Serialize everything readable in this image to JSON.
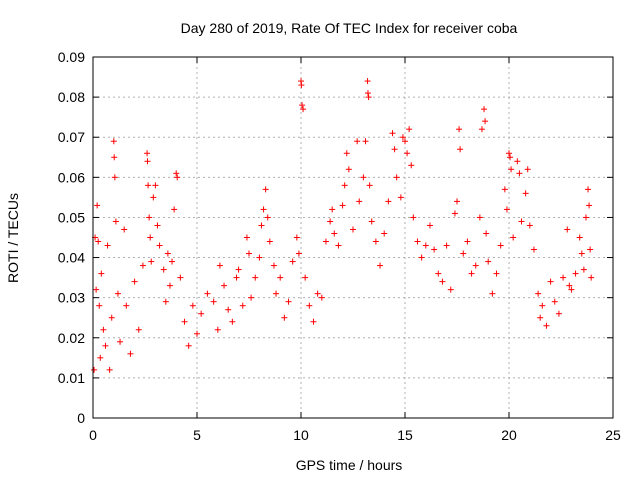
{
  "chart_data": {
    "type": "scatter",
    "title": "Day 280 of 2019, Rate Of TEC Index for receiver coba",
    "xlabel": "GPS time / hours",
    "ylabel": "ROTI / TECUs",
    "xlim": [
      0,
      25
    ],
    "ylim": [
      0,
      0.09
    ],
    "x_ticks": [
      0,
      5,
      10,
      15,
      20,
      25
    ],
    "x_tick_labels": [
      "0",
      "5",
      "10",
      "15",
      "20",
      "25"
    ],
    "y_ticks": [
      0,
      0.01,
      0.02,
      0.03,
      0.04,
      0.05,
      0.06,
      0.07,
      0.08,
      0.09
    ],
    "y_tick_labels": [
      "0",
      "0.01",
      "0.02",
      "0.03",
      "0.04",
      "0.05",
      "0.06",
      "0.07",
      "0.08",
      "0.09"
    ],
    "grid": true,
    "marker": "plus",
    "color": "#ff0000",
    "series": [
      {
        "name": "ROTI",
        "points": [
          [
            0.05,
            0.012
          ],
          [
            0.1,
            0.045
          ],
          [
            0.15,
            0.032
          ],
          [
            0.2,
            0.053
          ],
          [
            0.25,
            0.044
          ],
          [
            0.3,
            0.028
          ],
          [
            0.35,
            0.015
          ],
          [
            0.4,
            0.036
          ],
          [
            0.5,
            0.022
          ],
          [
            0.6,
            0.018
          ],
          [
            0.7,
            0.043
          ],
          [
            0.8,
            0.012
          ],
          [
            0.9,
            0.025
          ],
          [
            1.0,
            0.069
          ],
          [
            1.02,
            0.065
          ],
          [
            1.05,
            0.06
          ],
          [
            1.1,
            0.049
          ],
          [
            1.2,
            0.031
          ],
          [
            1.3,
            0.019
          ],
          [
            1.5,
            0.047
          ],
          [
            1.6,
            0.028
          ],
          [
            1.8,
            0.016
          ],
          [
            2.0,
            0.034
          ],
          [
            2.2,
            0.022
          ],
          [
            2.4,
            0.038
          ],
          [
            2.6,
            0.066
          ],
          [
            2.62,
            0.064
          ],
          [
            2.65,
            0.058
          ],
          [
            2.7,
            0.05
          ],
          [
            2.75,
            0.045
          ],
          [
            2.8,
            0.039
          ],
          [
            2.9,
            0.055
          ],
          [
            3.0,
            0.058
          ],
          [
            3.1,
            0.048
          ],
          [
            3.2,
            0.043
          ],
          [
            3.4,
            0.037
          ],
          [
            3.5,
            0.029
          ],
          [
            3.6,
            0.041
          ],
          [
            3.7,
            0.033
          ],
          [
            3.8,
            0.039
          ],
          [
            3.9,
            0.052
          ],
          [
            4.0,
            0.061
          ],
          [
            4.05,
            0.06
          ],
          [
            4.2,
            0.035
          ],
          [
            4.4,
            0.024
          ],
          [
            4.6,
            0.018
          ],
          [
            4.8,
            0.028
          ],
          [
            5.0,
            0.021
          ],
          [
            5.2,
            0.026
          ],
          [
            5.5,
            0.031
          ],
          [
            5.8,
            0.029
          ],
          [
            6.0,
            0.022
          ],
          [
            6.1,
            0.038
          ],
          [
            6.3,
            0.033
          ],
          [
            6.5,
            0.027
          ],
          [
            6.7,
            0.024
          ],
          [
            6.9,
            0.035
          ],
          [
            7.0,
            0.037
          ],
          [
            7.2,
            0.028
          ],
          [
            7.4,
            0.045
          ],
          [
            7.5,
            0.041
          ],
          [
            7.6,
            0.03
          ],
          [
            7.8,
            0.035
          ],
          [
            8.0,
            0.04
          ],
          [
            8.1,
            0.048
          ],
          [
            8.2,
            0.052
          ],
          [
            8.3,
            0.057
          ],
          [
            8.4,
            0.05
          ],
          [
            8.5,
            0.044
          ],
          [
            8.7,
            0.038
          ],
          [
            8.8,
            0.031
          ],
          [
            9.0,
            0.035
          ],
          [
            9.2,
            0.025
          ],
          [
            9.4,
            0.029
          ],
          [
            9.6,
            0.039
          ],
          [
            9.8,
            0.045
          ],
          [
            9.9,
            0.041
          ],
          [
            10.0,
            0.084
          ],
          [
            10.02,
            0.083
          ],
          [
            10.05,
            0.078
          ],
          [
            10.1,
            0.077
          ],
          [
            10.2,
            0.035
          ],
          [
            10.4,
            0.028
          ],
          [
            10.6,
            0.024
          ],
          [
            10.8,
            0.031
          ],
          [
            11.0,
            0.03
          ],
          [
            11.2,
            0.044
          ],
          [
            11.4,
            0.049
          ],
          [
            11.5,
            0.052
          ],
          [
            11.6,
            0.046
          ],
          [
            11.8,
            0.043
          ],
          [
            12.0,
            0.053
          ],
          [
            12.1,
            0.058
          ],
          [
            12.2,
            0.066
          ],
          [
            12.3,
            0.062
          ],
          [
            12.5,
            0.047
          ],
          [
            12.7,
            0.069
          ],
          [
            12.8,
            0.054
          ],
          [
            13.0,
            0.06
          ],
          [
            13.1,
            0.069
          ],
          [
            13.2,
            0.084
          ],
          [
            13.22,
            0.081
          ],
          [
            13.25,
            0.08
          ],
          [
            13.3,
            0.058
          ],
          [
            13.4,
            0.049
          ],
          [
            13.6,
            0.044
          ],
          [
            13.8,
            0.038
          ],
          [
            14.0,
            0.046
          ],
          [
            14.2,
            0.054
          ],
          [
            14.4,
            0.071
          ],
          [
            14.5,
            0.067
          ],
          [
            14.6,
            0.06
          ],
          [
            14.8,
            0.055
          ],
          [
            14.9,
            0.07
          ],
          [
            15.0,
            0.069
          ],
          [
            15.1,
            0.066
          ],
          [
            15.2,
            0.072
          ],
          [
            15.3,
            0.063
          ],
          [
            15.4,
            0.05
          ],
          [
            15.6,
            0.044
          ],
          [
            15.8,
            0.04
          ],
          [
            16.0,
            0.043
          ],
          [
            16.2,
            0.048
          ],
          [
            16.4,
            0.042
          ],
          [
            16.6,
            0.036
          ],
          [
            16.8,
            0.034
          ],
          [
            17.0,
            0.043
          ],
          [
            17.2,
            0.032
          ],
          [
            17.4,
            0.051
          ],
          [
            17.5,
            0.054
          ],
          [
            17.6,
            0.072
          ],
          [
            17.65,
            0.067
          ],
          [
            17.8,
            0.041
          ],
          [
            18.0,
            0.044
          ],
          [
            18.2,
            0.036
          ],
          [
            18.4,
            0.038
          ],
          [
            18.6,
            0.05
          ],
          [
            18.7,
            0.072
          ],
          [
            18.8,
            0.077
          ],
          [
            18.85,
            0.074
          ],
          [
            18.9,
            0.046
          ],
          [
            19.0,
            0.039
          ],
          [
            19.2,
            0.031
          ],
          [
            19.4,
            0.036
          ],
          [
            19.6,
            0.043
          ],
          [
            19.8,
            0.057
          ],
          [
            19.9,
            0.052
          ],
          [
            20.0,
            0.066
          ],
          [
            20.05,
            0.065
          ],
          [
            20.1,
            0.062
          ],
          [
            20.2,
            0.045
          ],
          [
            20.4,
            0.064
          ],
          [
            20.5,
            0.061
          ],
          [
            20.6,
            0.049
          ],
          [
            20.8,
            0.056
          ],
          [
            20.9,
            0.062
          ],
          [
            21.0,
            0.048
          ],
          [
            21.2,
            0.042
          ],
          [
            21.4,
            0.031
          ],
          [
            21.5,
            0.025
          ],
          [
            21.6,
            0.028
          ],
          [
            21.8,
            0.023
          ],
          [
            22.0,
            0.034
          ],
          [
            22.2,
            0.029
          ],
          [
            22.4,
            0.026
          ],
          [
            22.6,
            0.035
          ],
          [
            22.8,
            0.047
          ],
          [
            22.9,
            0.033
          ],
          [
            23.0,
            0.032
          ],
          [
            23.2,
            0.036
          ],
          [
            23.4,
            0.045
          ],
          [
            23.5,
            0.041
          ],
          [
            23.6,
            0.037
          ],
          [
            23.7,
            0.05
          ],
          [
            23.8,
            0.057
          ],
          [
            23.85,
            0.053
          ],
          [
            23.9,
            0.042
          ],
          [
            23.95,
            0.035
          ]
        ]
      }
    ]
  }
}
